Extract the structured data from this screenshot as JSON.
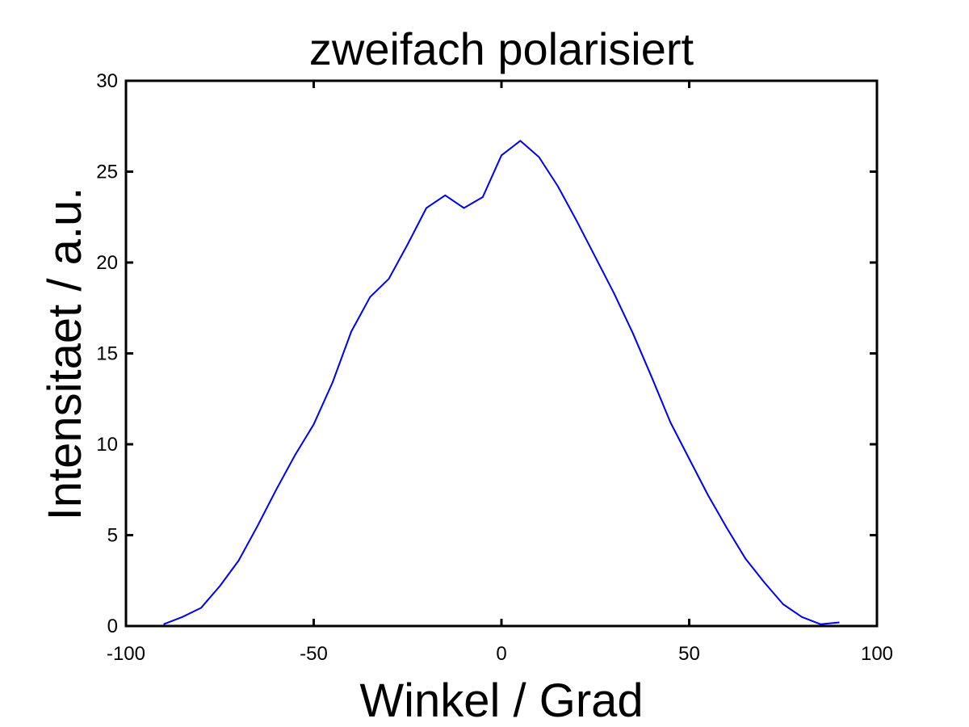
{
  "chart_data": {
    "type": "line",
    "title": "zweifach polarisiert",
    "xlabel": "Winkel / Grad",
    "ylabel": "Intensitaet / a.u.",
    "xlim": [
      -100,
      100
    ],
    "ylim": [
      0,
      30
    ],
    "xticks": [
      -100,
      -50,
      0,
      50,
      100
    ],
    "yticks": [
      0,
      5,
      10,
      15,
      20,
      25,
      30
    ],
    "xtick_labels": [
      "-100",
      "-50",
      "0",
      "50",
      "100"
    ],
    "ytick_labels": [
      "0",
      "5",
      "10",
      "15",
      "20",
      "25",
      "30"
    ],
    "grid": false,
    "series": [
      {
        "color": "#0000ee",
        "x": [
          -90,
          -85,
          -80,
          -75,
          -70,
          -65,
          -60,
          -55,
          -50,
          -45,
          -40,
          -35,
          -30,
          -25,
          -20,
          -15,
          -10,
          -5,
          0,
          5,
          10,
          15,
          20,
          25,
          30,
          35,
          40,
          45,
          50,
          55,
          60,
          65,
          70,
          75,
          80,
          85,
          90
        ],
        "y": [
          0.1,
          0.5,
          1.0,
          2.2,
          3.6,
          5.5,
          7.5,
          9.4,
          11.1,
          13.4,
          16.2,
          18.1,
          19.1,
          21.0,
          23.0,
          23.7,
          23.0,
          23.6,
          25.9,
          26.7,
          25.8,
          24.2,
          22.3,
          20.3,
          18.3,
          16.1,
          13.7,
          11.2,
          9.2,
          7.2,
          5.4,
          3.7,
          2.4,
          1.2,
          0.5,
          0.1,
          0.2
        ]
      }
    ]
  }
}
